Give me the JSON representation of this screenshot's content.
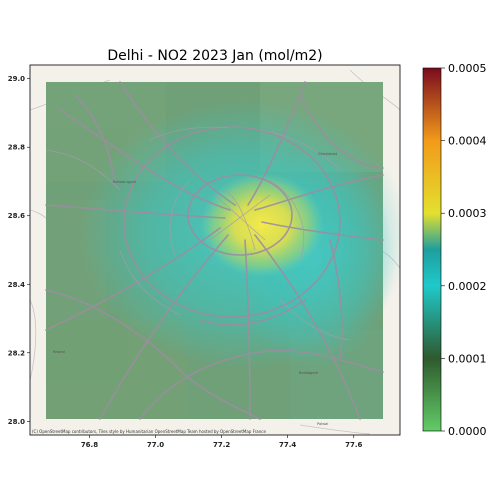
{
  "figure": {
    "title": "Delhi - NO2 2023 Jan (mol/m2)",
    "attribution": "(C) OpenStreetMap contributors, Tiles style by Humanitarian OpenStreetMap Team hosted by OpenStreetMap France",
    "colors": {
      "background": "#ffffff",
      "basemap": "#f4f1ea",
      "roads": "#9c8f9a",
      "hotspot": "#f2e64a"
    }
  },
  "chart_data": {
    "type": "heatmap",
    "title": "Delhi - NO2 2023 Jan (mol/m2)",
    "xlabel": "",
    "ylabel": "",
    "x_ticks": [
      "76.8",
      "77.0",
      "77.2",
      "77.4",
      "77.6"
    ],
    "y_ticks": [
      "28.0",
      "28.2",
      "28.4",
      "28.6",
      "28.8",
      "29.0"
    ],
    "xlim": [
      76.62,
      77.74
    ],
    "ylim": [
      27.96,
      29.04
    ],
    "data_extent": {
      "lon": [
        76.67,
        77.71
      ],
      "lat": [
        27.99,
        29.0
      ]
    },
    "colorbar": {
      "ticks": [
        "0.0000",
        "0.0001",
        "0.0002",
        "0.0003",
        "0.0004",
        "0.0005"
      ],
      "range": [
        0.0,
        0.0005
      ],
      "colormap_stops": [
        {
          "value": 0.0,
          "color": "#62cc66"
        },
        {
          "value": 0.0001,
          "color": "#2e5a2e"
        },
        {
          "value": 0.0002,
          "color": "#1fc9c9"
        },
        {
          "value": 0.00025,
          "color": "#1f9e9e"
        },
        {
          "value": 0.0003,
          "color": "#e4e02e"
        },
        {
          "value": 0.0004,
          "color": "#f29a1a"
        },
        {
          "value": 0.0005,
          "color": "#7a0b1e"
        }
      ]
    },
    "field_summary": {
      "background_value": 0.00013,
      "urban_core_value": 0.0002,
      "hotspot": {
        "lon": 77.33,
        "lat": 28.56,
        "peak_value": 0.00031
      }
    },
    "grid": false,
    "legend": "colorbar right"
  }
}
